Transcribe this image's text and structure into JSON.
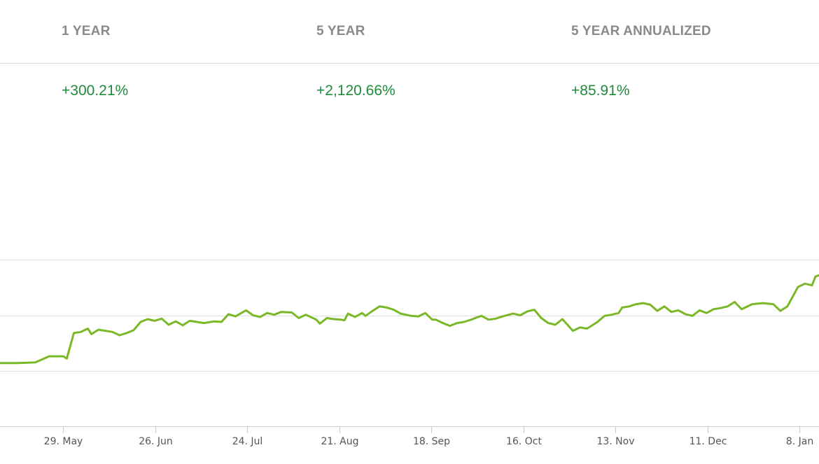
{
  "stats": [
    {
      "label": "1 YEAR",
      "value": "+300.21%"
    },
    {
      "label": "5 YEAR",
      "value": "+2,120.66%"
    },
    {
      "label": "5 YEAR ANNUALIZED",
      "value": "+85.91%"
    }
  ],
  "colors": {
    "line": "#7ab828",
    "positive": "#1e8a3c",
    "label": "#8a8a8a",
    "grid": "#e2e2e2",
    "tick": "#555555"
  },
  "chart_data": {
    "type": "line",
    "title": "",
    "xlabel": "",
    "ylabel": "",
    "grid": true,
    "ylim": [
      0,
      4
    ],
    "x_ticks": [
      "29. May",
      "26. Jun",
      "24. Jul",
      "21. Aug",
      "18. Sep",
      "16. Oct",
      "13. Nov",
      "11. Dec",
      "8. Jan"
    ],
    "y_gridlines": [
      1,
      2,
      3
    ],
    "series": [
      {
        "values": [
          [
            0,
            1.14
          ],
          [
            5,
            1.14
          ],
          [
            10,
            1.15
          ],
          [
            14,
            1.26
          ],
          [
            18,
            1.26
          ],
          [
            19,
            1.22
          ],
          [
            21,
            1.68
          ],
          [
            23,
            1.7
          ],
          [
            25,
            1.76
          ],
          [
            26,
            1.66
          ],
          [
            28,
            1.74
          ],
          [
            30,
            1.72
          ],
          [
            32,
            1.7
          ],
          [
            34,
            1.64
          ],
          [
            36,
            1.68
          ],
          [
            38,
            1.73
          ],
          [
            40,
            1.88
          ],
          [
            42,
            1.93
          ],
          [
            44,
            1.9
          ],
          [
            46,
            1.94
          ],
          [
            48,
            1.83
          ],
          [
            50,
            1.89
          ],
          [
            52,
            1.82
          ],
          [
            54,
            1.9
          ],
          [
            58,
            1.86
          ],
          [
            61,
            1.89
          ],
          [
            63,
            1.88
          ],
          [
            65,
            2.02
          ],
          [
            67,
            1.98
          ],
          [
            70,
            2.09
          ],
          [
            72,
            2.0
          ],
          [
            74,
            1.97
          ],
          [
            76,
            2.04
          ],
          [
            78,
            2.01
          ],
          [
            80,
            2.06
          ],
          [
            83,
            2.05
          ],
          [
            85,
            1.95
          ],
          [
            87,
            2.01
          ],
          [
            90,
            1.92
          ],
          [
            91,
            1.85
          ],
          [
            93,
            1.95
          ],
          [
            95,
            1.93
          ],
          [
            97,
            1.92
          ],
          [
            98,
            1.91
          ],
          [
            99,
            2.03
          ],
          [
            101,
            1.97
          ],
          [
            103,
            2.04
          ],
          [
            104,
            1.99
          ],
          [
            106,
            2.08
          ],
          [
            108,
            2.16
          ],
          [
            110,
            2.14
          ],
          [
            112,
            2.1
          ],
          [
            114,
            2.03
          ],
          [
            117,
            1.99
          ],
          [
            119,
            1.98
          ],
          [
            121,
            2.04
          ],
          [
            123,
            1.92
          ],
          [
            124,
            1.92
          ],
          [
            126,
            1.86
          ],
          [
            128,
            1.81
          ],
          [
            130,
            1.86
          ],
          [
            132,
            1.88
          ],
          [
            134,
            1.92
          ],
          [
            136,
            1.97
          ],
          [
            137,
            1.99
          ],
          [
            139,
            1.92
          ],
          [
            141,
            1.94
          ],
          [
            143,
            1.98
          ],
          [
            146,
            2.03
          ],
          [
            148,
            2.0
          ],
          [
            150,
            2.07
          ],
          [
            152,
            2.1
          ],
          [
            154,
            1.95
          ],
          [
            156,
            1.86
          ],
          [
            158,
            1.83
          ],
          [
            160,
            1.93
          ],
          [
            163,
            1.72
          ],
          [
            165,
            1.78
          ],
          [
            167,
            1.76
          ],
          [
            170,
            1.88
          ],
          [
            172,
            1.99
          ],
          [
            174,
            2.01
          ],
          [
            176,
            2.04
          ],
          [
            177,
            2.14
          ],
          [
            179,
            2.16
          ],
          [
            181,
            2.2
          ],
          [
            183,
            2.22
          ],
          [
            185,
            2.19
          ],
          [
            187,
            2.08
          ],
          [
            189,
            2.16
          ],
          [
            191,
            2.06
          ],
          [
            193,
            2.09
          ],
          [
            195,
            2.02
          ],
          [
            197,
            1.99
          ],
          [
            199,
            2.09
          ],
          [
            201,
            2.04
          ],
          [
            203,
            2.11
          ],
          [
            205,
            2.13
          ],
          [
            207,
            2.16
          ],
          [
            209,
            2.24
          ],
          [
            211,
            2.11
          ],
          [
            214,
            2.2
          ],
          [
            217,
            2.22
          ],
          [
            220,
            2.2
          ],
          [
            222,
            2.08
          ],
          [
            224,
            2.16
          ],
          [
            226,
            2.39
          ],
          [
            227,
            2.51
          ],
          [
            229,
            2.57
          ],
          [
            231,
            2.54
          ],
          [
            232,
            2.7
          ],
          [
            233,
            2.72
          ]
        ]
      }
    ]
  }
}
